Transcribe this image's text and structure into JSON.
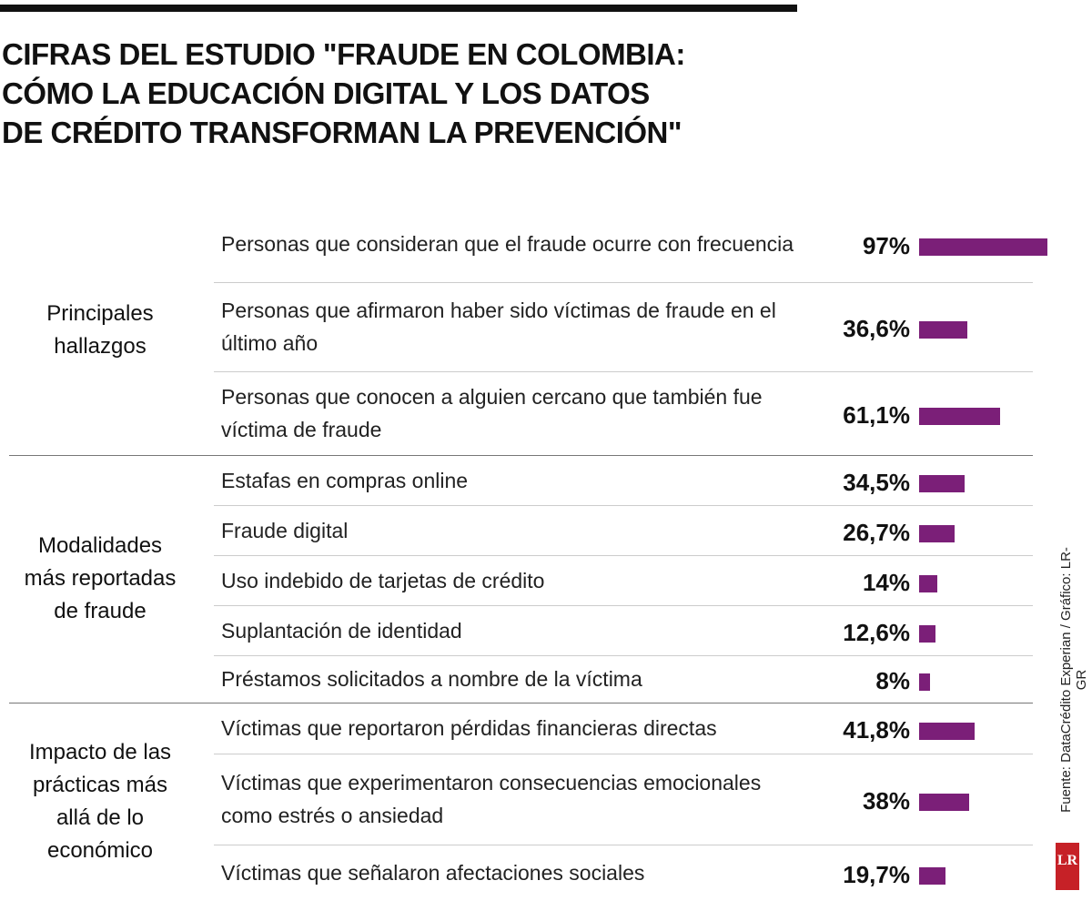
{
  "chart_data": {
    "type": "bar",
    "orientation": "horizontal",
    "title": "CIFRAS DEL ESTUDIO \"FRAUDE EN COLOMBIA:\nCÓMO LA EDUCACIÓN DIGITAL Y LOS DATOS\nDE CRÉDITO TRANSFORMAN LA PREVENCIÓN\"",
    "color": "#7b1f78",
    "xlim": [
      0,
      100
    ],
    "groups": [
      {
        "name": "Principales hallazgos",
        "categories": [
          "Personas que consideran que el fraude ocurre con frecuencia",
          "Personas que afirmaron haber sido víctimas de fraude en el último año",
          "Personas que conocen a alguien cercano que también fue víctima de fraude"
        ],
        "values": [
          97,
          36.6,
          61.1
        ],
        "value_labels": [
          "97%",
          "36,6%",
          "61,1%"
        ]
      },
      {
        "name": "Modalidades más reportadas de fraude",
        "categories": [
          "Estafas en compras online",
          "Fraude digital",
          "Uso indebido de tarjetas de crédito",
          "Suplantación de identidad",
          "Préstamos solicitados a nombre de la víctima"
        ],
        "values": [
          34.5,
          26.7,
          14,
          12.6,
          8
        ],
        "value_labels": [
          "34,5%",
          "26,7%",
          "14%",
          "12,6%",
          "8%"
        ]
      },
      {
        "name": "Impacto de las prácticas más allá de lo económico",
        "categories": [
          "Víctimas que reportaron pérdidas financieras directas",
          "Víctimas que experimentaron consecuencias emocionales como estrés o ansiedad",
          "Víctimas que señalaron afectaciones sociales"
        ],
        "values": [
          41.8,
          38,
          19.7
        ],
        "value_labels": [
          "41,8%",
          "38%",
          "19,7%"
        ]
      }
    ],
    "source": "Fuente: DataCrédito Experian / Gráfico: LR-GR",
    "logo": "LR"
  }
}
